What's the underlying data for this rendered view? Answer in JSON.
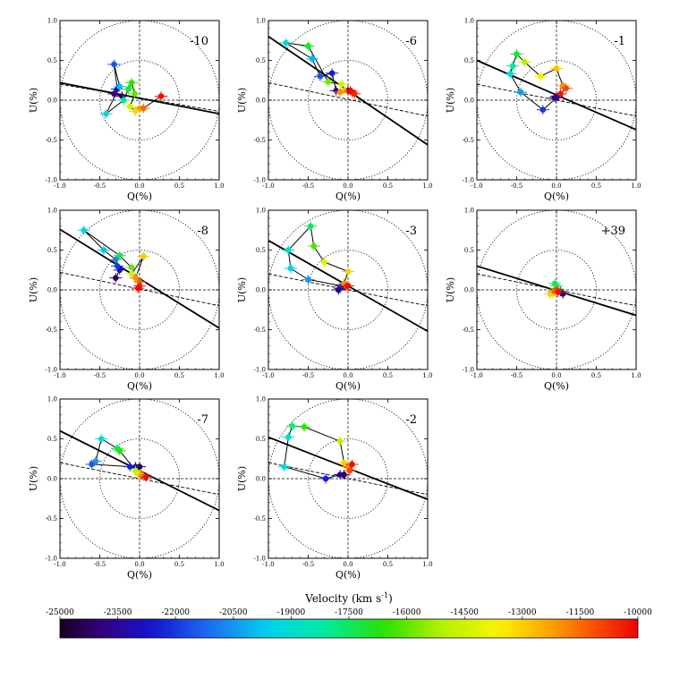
{
  "chart_data": {
    "type": "scatter",
    "title": "",
    "xlabel": "Q(%)",
    "ylabel": "U(%)",
    "xlim": [
      -1.0,
      1.0
    ],
    "ylim": [
      -1.0,
      1.0
    ],
    "xticks": [
      "-1.0",
      "-0.5",
      "0.0",
      "0.5",
      "1.0"
    ],
    "yticks": [
      "1.0",
      "0.5",
      "0.0",
      "-0.5",
      "-1.0"
    ],
    "circle_radii": [
      0.5,
      1.0
    ],
    "colorbar": {
      "label_main": "Velocity (km s",
      "label_sup": "-1",
      "label_close": ")",
      "min": -25000,
      "max": -10000,
      "tick_values": [
        -25000,
        -23500,
        -22000,
        -20500,
        -19000,
        -17500,
        -16000,
        -14500,
        -13000,
        -11500,
        -10000
      ],
      "tick_labels": [
        "-25000",
        "-23500",
        "-22000",
        "-20500",
        "-19000",
        "-17500",
        "-16000",
        "-14500",
        "-13000",
        "-11500",
        "-10000"
      ]
    },
    "panels": [
      {
        "label": "-10",
        "solid_line": [
          [
            -1.0,
            0.22
          ],
          [
            1.0,
            -0.17
          ]
        ],
        "dashed_line": [
          [
            -1.0,
            0.2
          ],
          [
            1.0,
            -0.14
          ]
        ],
        "points": [
          {
            "v": -24200,
            "q": -0.22,
            "u": 0.05
          },
          {
            "v": -23800,
            "q": -0.32,
            "u": 0.08
          },
          {
            "v": -23000,
            "q": -0.28,
            "u": 0.14
          },
          {
            "v": -21500,
            "q": -0.32,
            "u": 0.45
          },
          {
            "v": -20000,
            "q": -0.25,
            "u": 0.17
          },
          {
            "v": -19000,
            "q": -0.42,
            "u": -0.17
          },
          {
            "v": -18000,
            "q": -0.2,
            "u": 0.0
          },
          {
            "v": -17000,
            "q": -0.14,
            "u": 0.14
          },
          {
            "v": -16500,
            "q": -0.1,
            "u": 0.22
          },
          {
            "v": -16000,
            "q": -0.06,
            "u": 0.08
          },
          {
            "v": -14500,
            "q": -0.12,
            "u": -0.08
          },
          {
            "v": -13200,
            "q": -0.05,
            "u": -0.14
          },
          {
            "v": -12500,
            "q": 0.0,
            "u": -0.1
          },
          {
            "v": -11500,
            "q": 0.05,
            "u": -0.1
          },
          {
            "v": -10200,
            "q": 0.27,
            "u": 0.05
          }
        ]
      },
      {
        "label": "-6",
        "solid_line": [
          [
            -1.0,
            0.8
          ],
          [
            1.0,
            -0.56
          ]
        ],
        "dashed_line": [
          [
            -1.0,
            0.22
          ],
          [
            1.0,
            -0.2
          ]
        ],
        "points": [
          {
            "v": -24500,
            "q": 0.0,
            "u": 0.12
          },
          {
            "v": -23500,
            "q": -0.15,
            "u": 0.12
          },
          {
            "v": -22500,
            "q": -0.2,
            "u": 0.34
          },
          {
            "v": -21500,
            "q": -0.35,
            "u": 0.3
          },
          {
            "v": -20000,
            "q": -0.45,
            "u": 0.52
          },
          {
            "v": -19200,
            "q": -0.78,
            "u": 0.72
          },
          {
            "v": -17000,
            "q": -0.5,
            "u": 0.68
          },
          {
            "v": -15800,
            "q": -0.25,
            "u": 0.23
          },
          {
            "v": -14500,
            "q": -0.08,
            "u": 0.2
          },
          {
            "v": -13000,
            "q": -0.05,
            "u": 0.12
          },
          {
            "v": -12000,
            "q": -0.1,
            "u": 0.1
          },
          {
            "v": -11000,
            "q": 0.05,
            "u": 0.1
          },
          {
            "v": -10500,
            "q": 0.08,
            "u": 0.08
          },
          {
            "v": -10100,
            "q": 0.03,
            "u": 0.12
          }
        ]
      },
      {
        "label": "-1",
        "solid_line": [
          [
            -1.0,
            0.5
          ],
          [
            1.0,
            -0.37
          ]
        ],
        "dashed_line": [
          [
            -1.0,
            0.2
          ],
          [
            1.0,
            -0.2
          ]
        ],
        "points": [
          {
            "v": -24800,
            "q": -0.02,
            "u": 0.03
          },
          {
            "v": -24000,
            "q": 0.0,
            "u": 0.05
          },
          {
            "v": -23500,
            "q": 0.0,
            "u": 0.03
          },
          {
            "v": -22000,
            "q": -0.17,
            "u": -0.12
          },
          {
            "v": -20500,
            "q": -0.45,
            "u": 0.1
          },
          {
            "v": -19200,
            "q": -0.58,
            "u": 0.33
          },
          {
            "v": -18000,
            "q": -0.55,
            "u": 0.43
          },
          {
            "v": -17000,
            "q": -0.5,
            "u": 0.58
          },
          {
            "v": -15000,
            "q": -0.4,
            "u": 0.48
          },
          {
            "v": -13800,
            "q": -0.2,
            "u": 0.3
          },
          {
            "v": -12800,
            "q": 0.0,
            "u": 0.4
          },
          {
            "v": -12000,
            "q": 0.08,
            "u": 0.18
          },
          {
            "v": -11000,
            "q": 0.12,
            "u": 0.15
          },
          {
            "v": -10300,
            "q": 0.05,
            "u": 0.08
          }
        ]
      },
      {
        "label": "-8",
        "solid_line": [
          [
            -1.0,
            0.76
          ],
          [
            1.0,
            -0.48
          ]
        ],
        "dashed_line": [
          [
            -1.0,
            0.22
          ],
          [
            1.0,
            -0.2
          ]
        ],
        "points": [
          {
            "v": -24200,
            "q": -0.3,
            "u": 0.15
          },
          {
            "v": -23000,
            "q": -0.25,
            "u": 0.25
          },
          {
            "v": -22000,
            "q": -0.28,
            "u": 0.3
          },
          {
            "v": -20800,
            "q": -0.3,
            "u": 0.38
          },
          {
            "v": -19800,
            "q": -0.45,
            "u": 0.5
          },
          {
            "v": -19200,
            "q": -0.7,
            "u": 0.75
          },
          {
            "v": -17200,
            "q": -0.25,
            "u": 0.43
          },
          {
            "v": -16000,
            "q": -0.1,
            "u": 0.28
          },
          {
            "v": -14500,
            "q": -0.1,
            "u": 0.2
          },
          {
            "v": -13000,
            "q": 0.05,
            "u": 0.42
          },
          {
            "v": -12000,
            "q": -0.05,
            "u": 0.15
          },
          {
            "v": -11500,
            "q": 0.0,
            "u": 0.1
          },
          {
            "v": -10500,
            "q": 0.0,
            "u": 0.05
          },
          {
            "v": -10100,
            "q": -0.02,
            "u": 0.02
          }
        ]
      },
      {
        "label": "-3",
        "solid_line": [
          [
            -1.0,
            0.62
          ],
          [
            1.0,
            -0.52
          ]
        ],
        "dashed_line": [
          [
            -1.0,
            0.2
          ],
          [
            1.0,
            -0.2
          ]
        ],
        "points": [
          {
            "v": -24500,
            "q": -0.12,
            "u": 0.0
          },
          {
            "v": -23500,
            "q": -0.1,
            "u": 0.02
          },
          {
            "v": -22500,
            "q": -0.08,
            "u": 0.05
          },
          {
            "v": -20500,
            "q": -0.5,
            "u": 0.13
          },
          {
            "v": -19500,
            "q": -0.72,
            "u": 0.27
          },
          {
            "v": -19000,
            "q": -0.75,
            "u": 0.5
          },
          {
            "v": -17500,
            "q": -0.47,
            "u": 0.8
          },
          {
            "v": -16200,
            "q": -0.43,
            "u": 0.55
          },
          {
            "v": -14200,
            "q": -0.3,
            "u": 0.35
          },
          {
            "v": -13000,
            "q": 0.0,
            "u": 0.23
          },
          {
            "v": -12000,
            "q": -0.05,
            "u": 0.08
          },
          {
            "v": -11000,
            "q": -0.02,
            "u": 0.05
          },
          {
            "v": -10200,
            "q": 0.0,
            "u": 0.05
          }
        ]
      },
      {
        "label": "+39",
        "solid_line": [
          [
            -1.0,
            0.3
          ],
          [
            1.0,
            -0.32
          ]
        ],
        "dashed_line": [
          [
            -1.0,
            0.2
          ],
          [
            1.0,
            -0.2
          ]
        ],
        "points": [
          {
            "v": -24500,
            "q": 0.08,
            "u": -0.05
          },
          {
            "v": -23000,
            "q": 0.05,
            "u": -0.02
          },
          {
            "v": -21000,
            "q": 0.0,
            "u": 0.0
          },
          {
            "v": -19000,
            "q": 0.0,
            "u": 0.05
          },
          {
            "v": -17500,
            "q": -0.02,
            "u": 0.08
          },
          {
            "v": -16000,
            "q": 0.0,
            "u": 0.02
          },
          {
            "v": -14000,
            "q": -0.05,
            "u": -0.05
          },
          {
            "v": -13000,
            "q": -0.08,
            "u": -0.05
          },
          {
            "v": -12000,
            "q": -0.03,
            "u": -0.02
          },
          {
            "v": -11000,
            "q": 0.0,
            "u": 0.0
          },
          {
            "v": -10200,
            "q": 0.02,
            "u": -0.03
          }
        ]
      },
      {
        "label": "-7",
        "solid_line": [
          [
            -1.0,
            0.6
          ],
          [
            1.0,
            -0.4
          ]
        ],
        "dashed_line": [
          [
            -1.0,
            0.2
          ],
          [
            1.0,
            -0.2
          ]
        ],
        "points": [
          {
            "v": -24500,
            "q": 0.0,
            "u": 0.15
          },
          {
            "v": -23500,
            "q": -0.05,
            "u": 0.15
          },
          {
            "v": -22500,
            "q": -0.12,
            "u": 0.15
          },
          {
            "v": -21500,
            "q": -0.6,
            "u": 0.18
          },
          {
            "v": -20500,
            "q": -0.55,
            "u": 0.22
          },
          {
            "v": -19200,
            "q": -0.48,
            "u": 0.5
          },
          {
            "v": -17600,
            "q": -0.28,
            "u": 0.38
          },
          {
            "v": -16500,
            "q": -0.25,
            "u": 0.35
          },
          {
            "v": -15000,
            "q": -0.05,
            "u": 0.1
          },
          {
            "v": -13500,
            "q": 0.0,
            "u": 0.05
          },
          {
            "v": -12500,
            "q": 0.02,
            "u": 0.05
          },
          {
            "v": -11500,
            "q": 0.05,
            "u": 0.03
          },
          {
            "v": -10200,
            "q": 0.08,
            "u": 0.02
          }
        ]
      },
      {
        "label": "-2",
        "solid_line": [
          [
            -1.0,
            0.52
          ],
          [
            1.0,
            -0.26
          ]
        ],
        "dashed_line": [
          [
            -1.0,
            0.2
          ],
          [
            1.0,
            -0.2
          ]
        ],
        "points": [
          {
            "v": -24500,
            "q": -0.05,
            "u": 0.05
          },
          {
            "v": -23500,
            "q": -0.1,
            "u": 0.05
          },
          {
            "v": -22500,
            "q": -0.28,
            "u": 0.0
          },
          {
            "v": -19300,
            "q": -0.8,
            "u": 0.15
          },
          {
            "v": -19000,
            "q": -0.75,
            "u": 0.52
          },
          {
            "v": -17800,
            "q": -0.7,
            "u": 0.66
          },
          {
            "v": -16500,
            "q": -0.55,
            "u": 0.65
          },
          {
            "v": -15000,
            "q": -0.1,
            "u": 0.47
          },
          {
            "v": -13000,
            "q": -0.05,
            "u": 0.2
          },
          {
            "v": -12000,
            "q": 0.0,
            "u": 0.15
          },
          {
            "v": -11000,
            "q": 0.02,
            "u": 0.1
          },
          {
            "v": -10200,
            "q": 0.05,
            "u": 0.18
          }
        ]
      }
    ]
  }
}
